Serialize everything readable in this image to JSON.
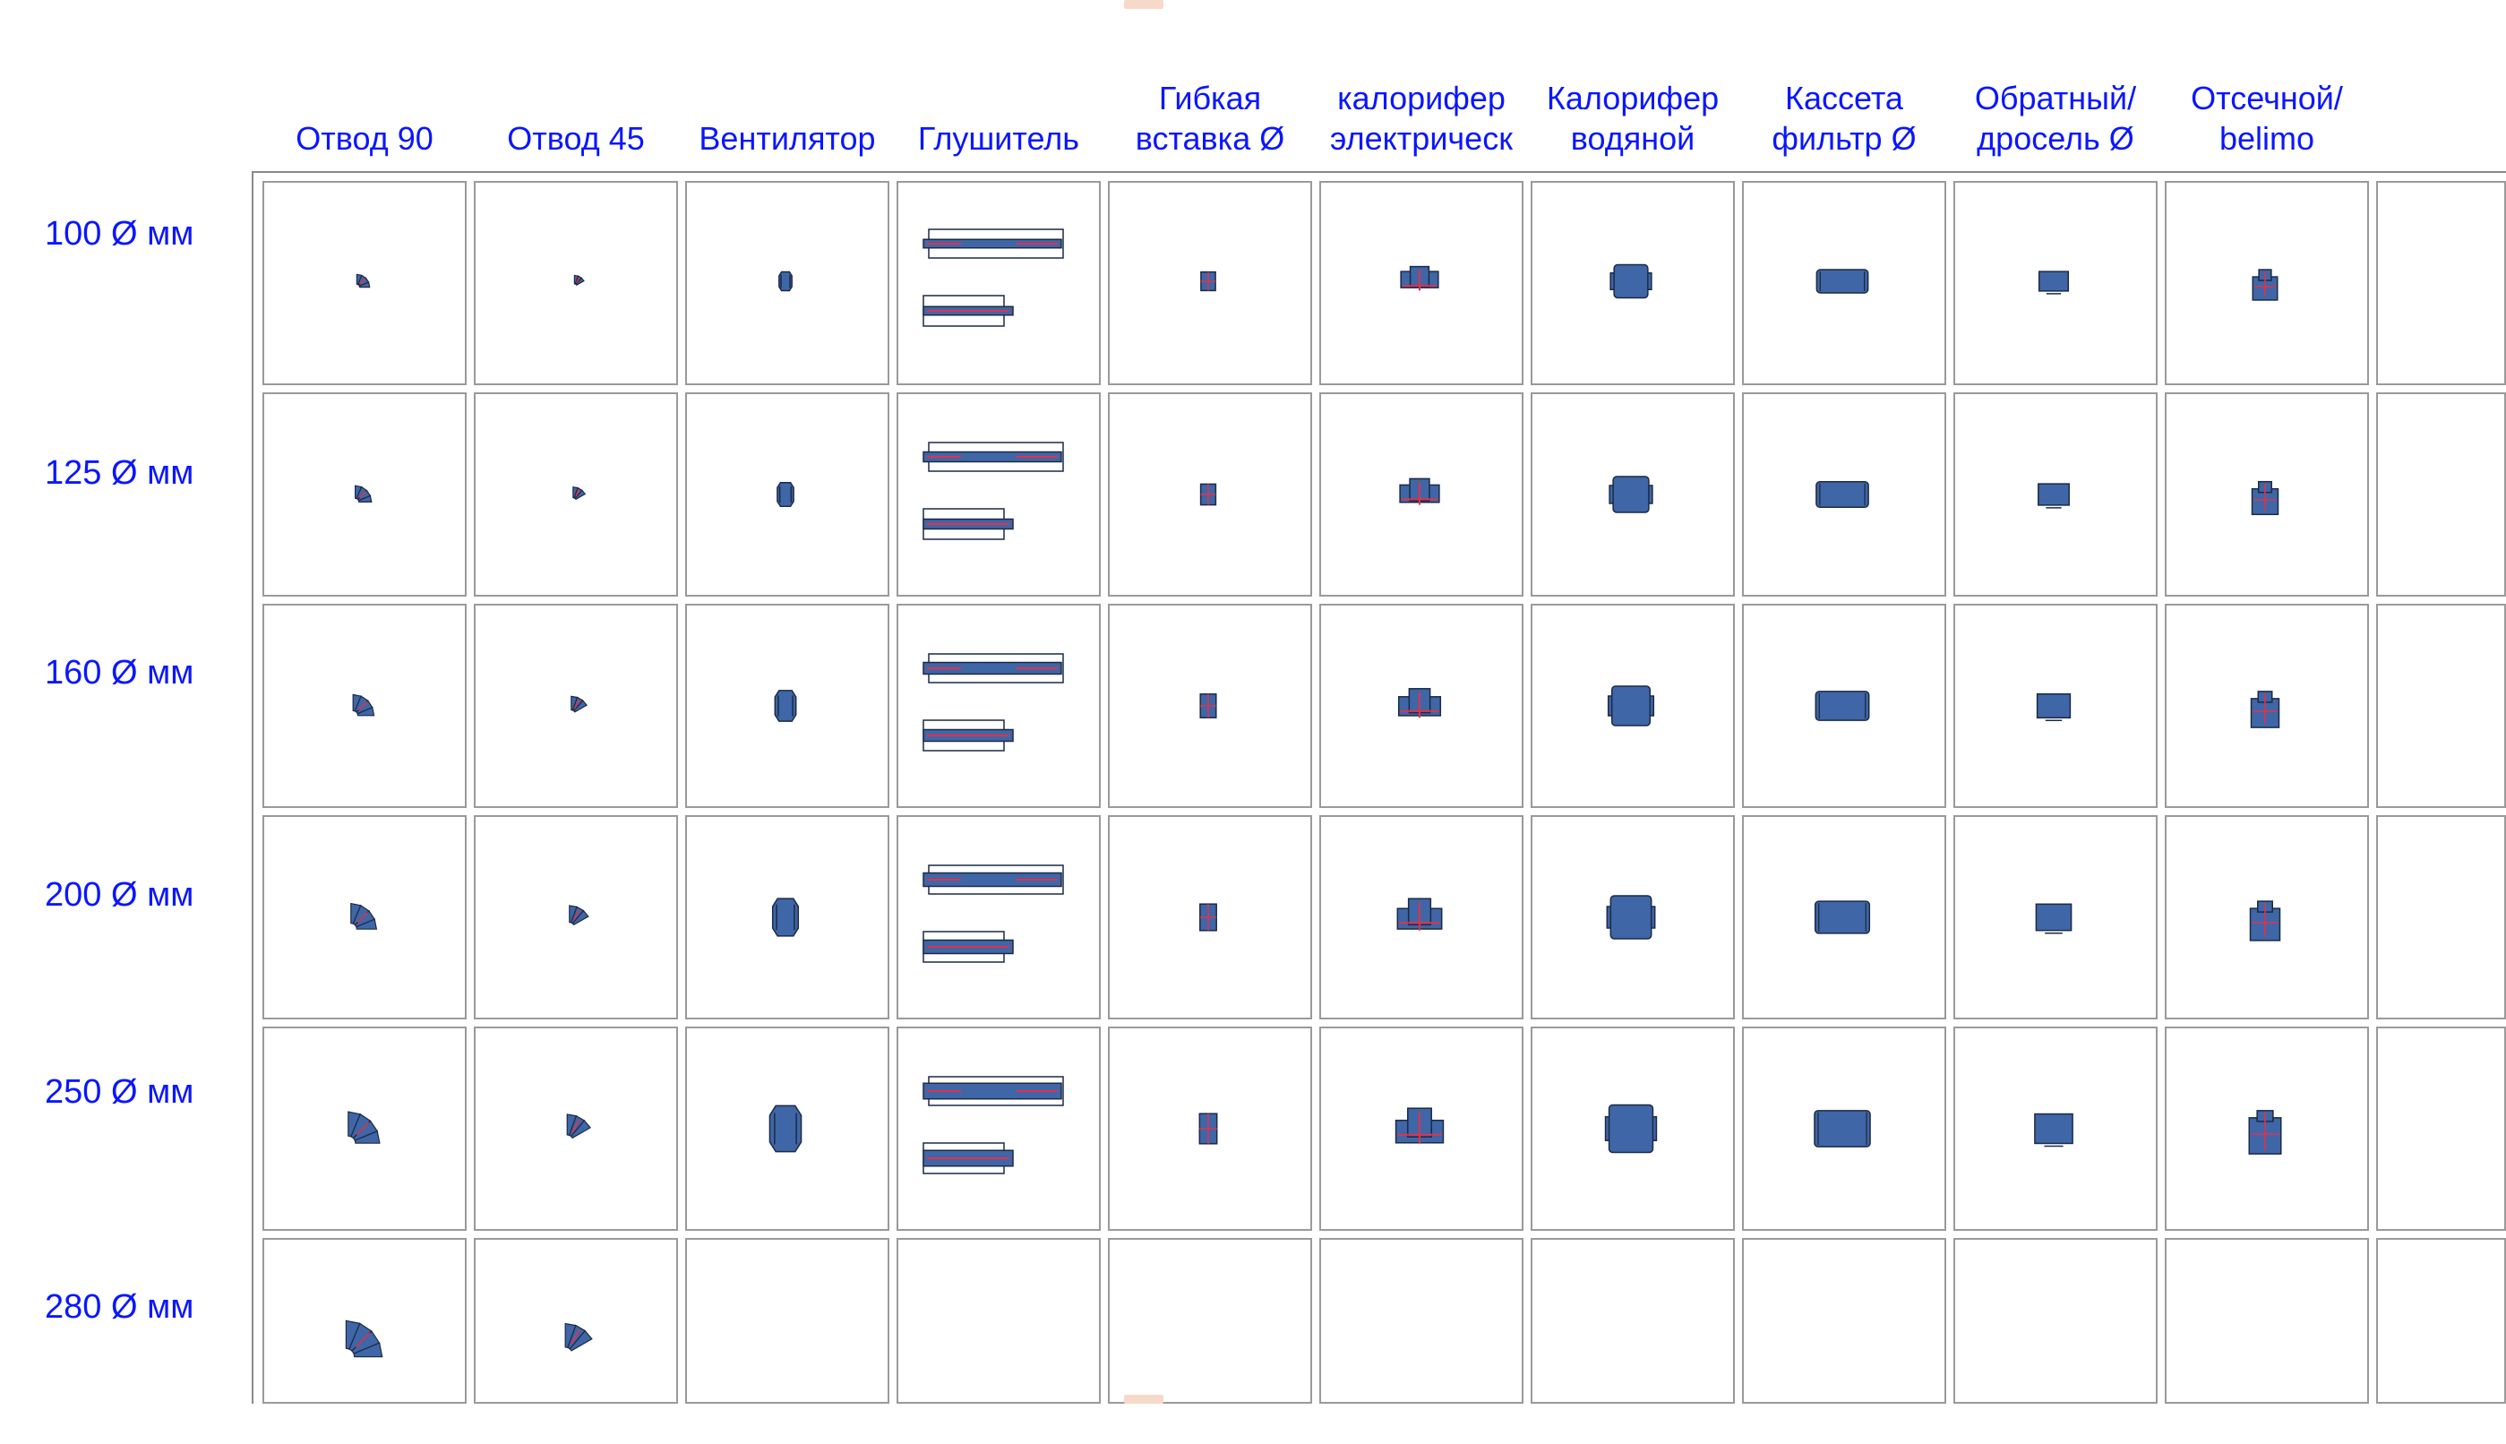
{
  "colors": {
    "header_text": "#0a16ff",
    "part_fill": "#3f66a6",
    "part_stroke": "#1c2a44",
    "centerline": "#e5304a",
    "grid": "#9a9a9a"
  },
  "columns": [
    {
      "lines": [
        "",
        "Отвод 90"
      ],
      "part": "elbow90"
    },
    {
      "lines": [
        "",
        "Отвод 45"
      ],
      "part": "elbow45"
    },
    {
      "lines": [
        "",
        "Вентилятор"
      ],
      "part": "fan"
    },
    {
      "lines": [
        "",
        "Глушитель"
      ],
      "part": "silencer"
    },
    {
      "lines": [
        "Гибкая",
        "вставка Ø"
      ],
      "part": "flex"
    },
    {
      "lines": [
        "калорифер",
        "электрическ"
      ],
      "part": "heater-electric"
    },
    {
      "lines": [
        "Калорифер",
        "водяной"
      ],
      "part": "heater-water"
    },
    {
      "lines": [
        "Кассета",
        "фильтр Ø"
      ],
      "part": "filter"
    },
    {
      "lines": [
        "Обратный/",
        "дросель Ø"
      ],
      "part": "check-valve"
    },
    {
      "lines": [
        "Отсечной/",
        "belimo"
      ],
      "part": "damper-belimo"
    },
    {
      "lines": [
        "",
        ""
      ],
      "part": "empty"
    }
  ],
  "rows": [
    {
      "label": "100 Ø мм",
      "diameter": 100,
      "filled_columns": 10
    },
    {
      "label": "125 Ø мм",
      "diameter": 125,
      "filled_columns": 10
    },
    {
      "label": "160 Ø мм",
      "diameter": 160,
      "filled_columns": 10
    },
    {
      "label": "200 Ø мм",
      "diameter": 200,
      "filled_columns": 10
    },
    {
      "label": "250 Ø мм",
      "diameter": 250,
      "filled_columns": 10
    },
    {
      "label": "280 Ø мм",
      "diameter": 280,
      "filled_columns": 2
    }
  ]
}
